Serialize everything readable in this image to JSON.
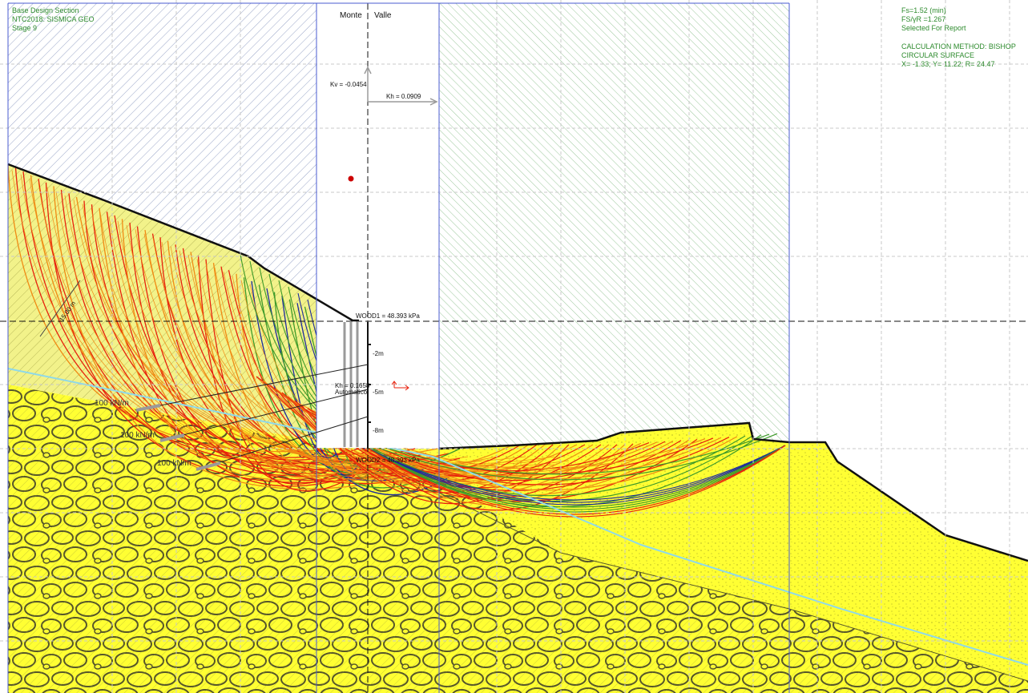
{
  "info_left": {
    "line1": "Base Design Section",
    "line2": "NTC2018: SISMICA GEO",
    "line3": "Stage 9"
  },
  "info_right": {
    "fs_min": "Fs=1.52 (min)",
    "fs_yr": "FS/γR =1.267",
    "selected": "Selected For Report",
    "method": "CALCULATION METHOD: BISHOP",
    "surface": "CIRCULAR SURFACE",
    "circle": "X= -1.33; Y= 11.22; R= 24.47"
  },
  "wall_headers": {
    "left": "Monte",
    "right": "Valle"
  },
  "seismic": {
    "kv": "Kv = -0.0454",
    "kh": "Kh = 0.0909",
    "kh_auto_value": "Kh = 0.1658",
    "kh_auto_label": "Automatico"
  },
  "wood_labels": {
    "top": "WOOD1 = 48.393 kPa",
    "bottom": "WOOD2 = 48.393 kPa"
  },
  "depth_marks": [
    "-2m",
    "-5m",
    "-8m"
  ],
  "anchor_loads": [
    "100 kN/m",
    "100 kN/m",
    "100 kN/m"
  ],
  "dimension_label": "15.00 m",
  "colors": {
    "soil_yellow": "#ffff33",
    "hatch_blue": "#9aa6c8",
    "hatch_green": "#9cc89c",
    "panel_border": "#4a5bd1",
    "info_green": "#2e8b2e",
    "surface_red": "#e8210c",
    "surface_orange": "#f08a14",
    "surface_green": "#3e9a2a",
    "surface_blue": "#1c2a9e",
    "water_line": "#8fd9e8",
    "critical_point": "#cc0000"
  }
}
